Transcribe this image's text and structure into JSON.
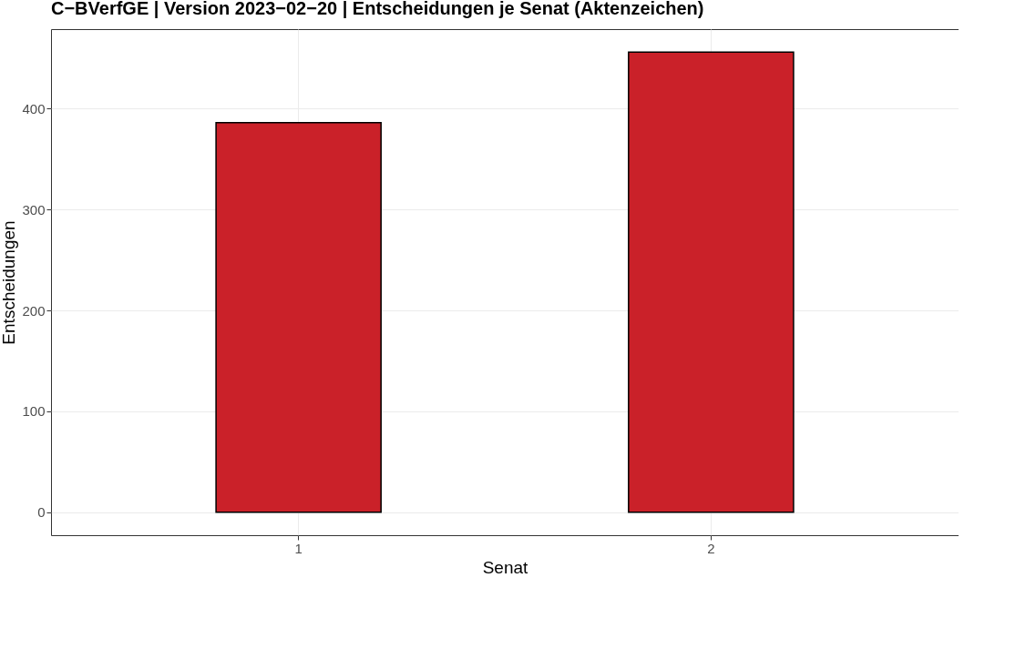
{
  "chart_data": {
    "type": "bar",
    "title": "C−BVerfGE | Version 2023−02−20 | Entscheidungen je Senat (Aktenzeichen)",
    "xlabel": "Senat",
    "ylabel": "Entscheidungen",
    "categories": [
      "1",
      "2"
    ],
    "values": [
      386,
      456
    ],
    "color": "#ca2129",
    "ylim": [
      -22.8,
      478.8
    ],
    "yticks": [
      0,
      100,
      200,
      300,
      400
    ],
    "grid": true
  }
}
